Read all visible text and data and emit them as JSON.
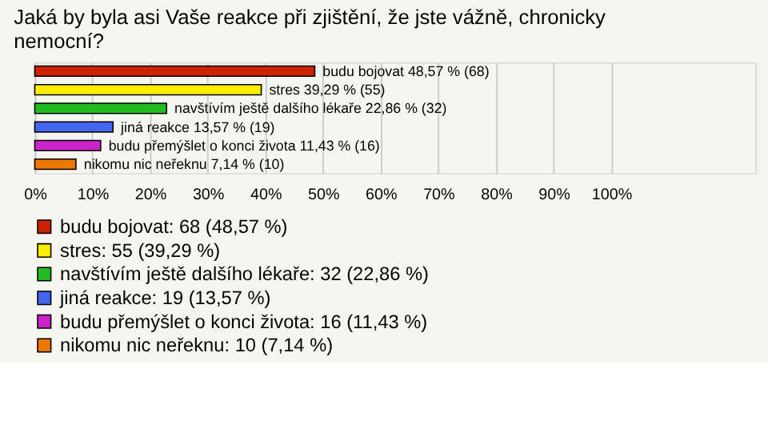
{
  "chart_data": {
    "type": "bar",
    "orientation": "horizontal",
    "title": [
      "Jaká by byla asi Vaše reakce při zjištění, že jste vážně, chronicky",
      "nemocní?"
    ],
    "categories": [
      null,
      null,
      null,
      null,
      null,
      null
    ],
    "series": [
      {
        "name": "budu bojovat: 68 (48,57 %)",
        "color": "#cc2200",
        "values": [
          48.57,
          null,
          null,
          null,
          null,
          null
        ],
        "value_labels": [
          "budu bojovat 48,57 % (68)",
          null,
          null,
          null,
          null,
          null
        ]
      },
      {
        "name": "stres: 55 (39,29 %)",
        "color": "#ffee00",
        "values": [
          null,
          39.29,
          null,
          null,
          null,
          null
        ],
        "value_labels": [
          null,
          "stres 39,29 % (55)",
          null,
          null,
          null,
          null
        ]
      },
      {
        "name": "navštívím ještě dalšího lékaře: 32 (22,86 %)",
        "color": "#22bb22",
        "values": [
          null,
          null,
          22.86,
          null,
          null,
          null
        ],
        "value_labels": [
          null,
          null,
          "navštívím ještě dalšího lékaře 22,86 % (32)",
          null,
          null,
          null
        ]
      },
      {
        "name": "jiná reakce: 19 (13,57 %)",
        "color": "#4466ee",
        "values": [
          null,
          null,
          null,
          13.57,
          null,
          null
        ],
        "value_labels": [
          null,
          null,
          null,
          "jiná reakce 13,57 % (19)",
          null,
          null
        ]
      },
      {
        "name": "budu přemýšlet o konci života: 16 (11,43 %)",
        "color": "#cc22cc",
        "values": [
          null,
          null,
          null,
          null,
          11.43,
          null
        ],
        "value_labels": [
          null,
          null,
          null,
          null,
          "budu přemýšlet o konci života 11,43 % (16)",
          null
        ]
      },
      {
        "name": "nikomu nic neřeknu: 10 (7,14 %)",
        "color": "#ee7700",
        "values": [
          null,
          null,
          null,
          null,
          null,
          7.14
        ],
        "value_labels": [
          null,
          null,
          null,
          null,
          null,
          "nikomu nic neřeknu 7,14 % (10)"
        ]
      }
    ],
    "xlim": [
      0,
      125
    ],
    "xticks": [
      {
        "value": 0,
        "label": "0%"
      },
      {
        "value": 10,
        "label": "10%"
      },
      {
        "value": 20,
        "label": "20%"
      },
      {
        "value": 30,
        "label": "30%"
      },
      {
        "value": 40,
        "label": "40%"
      },
      {
        "value": 50,
        "label": "50%"
      },
      {
        "value": 60,
        "label": "60%"
      },
      {
        "value": 70,
        "label": "70%"
      },
      {
        "value": 80,
        "label": "80%"
      },
      {
        "value": 90,
        "label": "90%"
      },
      {
        "value": 100,
        "label": "100%"
      }
    ],
    "grid": "x",
    "legend": "bottom"
  }
}
